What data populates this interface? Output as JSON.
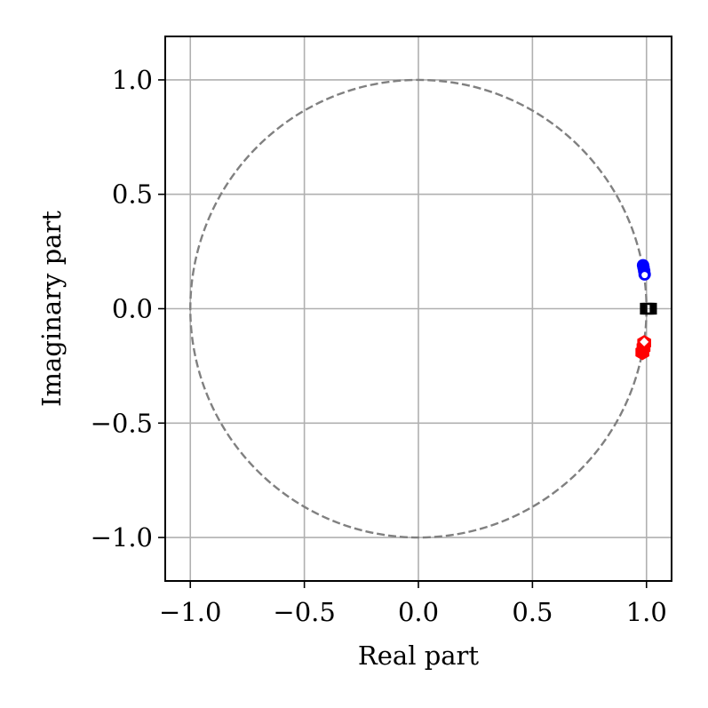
{
  "chart_data": {
    "type": "scatter",
    "title": "",
    "xlabel": "Real part",
    "ylabel": "Imaginary part",
    "xlim": [
      -1.11,
      1.11
    ],
    "ylim": [
      -1.19,
      1.19
    ],
    "x_ticks": [
      -1.0,
      -0.5,
      0.0,
      0.5,
      1.0
    ],
    "y_ticks": [
      -1.0,
      -0.5,
      0.0,
      0.5,
      1.0
    ],
    "x_tick_labels": [
      "−1.0",
      "−0.5",
      "0.0",
      "0.5",
      "1.0"
    ],
    "y_tick_labels": [
      "−1.0",
      "−0.5",
      "0.0",
      "0.5",
      "1.0"
    ],
    "grid": true,
    "legend": "none",
    "unit_circle": {
      "radius": 1.0,
      "style": "dashed",
      "color": "#808080"
    },
    "series": [
      {
        "marker": "circle",
        "color": "#0000ff",
        "points": [
          [
            0.985,
            0.19
          ],
          [
            0.987,
            0.18
          ],
          [
            0.99,
            0.165
          ],
          [
            0.992,
            0.15
          ]
        ]
      },
      {
        "marker": "circle-white",
        "color": "#ffffff",
        "points": [
          [
            0.992,
            0.147
          ]
        ]
      },
      {
        "marker": "hexagon",
        "color": "#ff0000",
        "points": [
          [
            0.982,
            -0.19
          ],
          [
            0.987,
            -0.17
          ],
          [
            0.99,
            -0.15
          ]
        ]
      },
      {
        "marker": "diamond-white",
        "color": "#ffffff",
        "points": [
          [
            0.99,
            -0.145
          ]
        ]
      },
      {
        "marker": "square-open",
        "color": "#000000",
        "points": [
          [
            0.997,
            0.0
          ],
          [
            1.005,
            0.0
          ],
          [
            1.012,
            0.0
          ],
          [
            1.02,
            0.0
          ]
        ]
      }
    ],
    "colors": {
      "grid": "#b0b0b0",
      "axes": "#000000",
      "circle": "#808080"
    }
  }
}
